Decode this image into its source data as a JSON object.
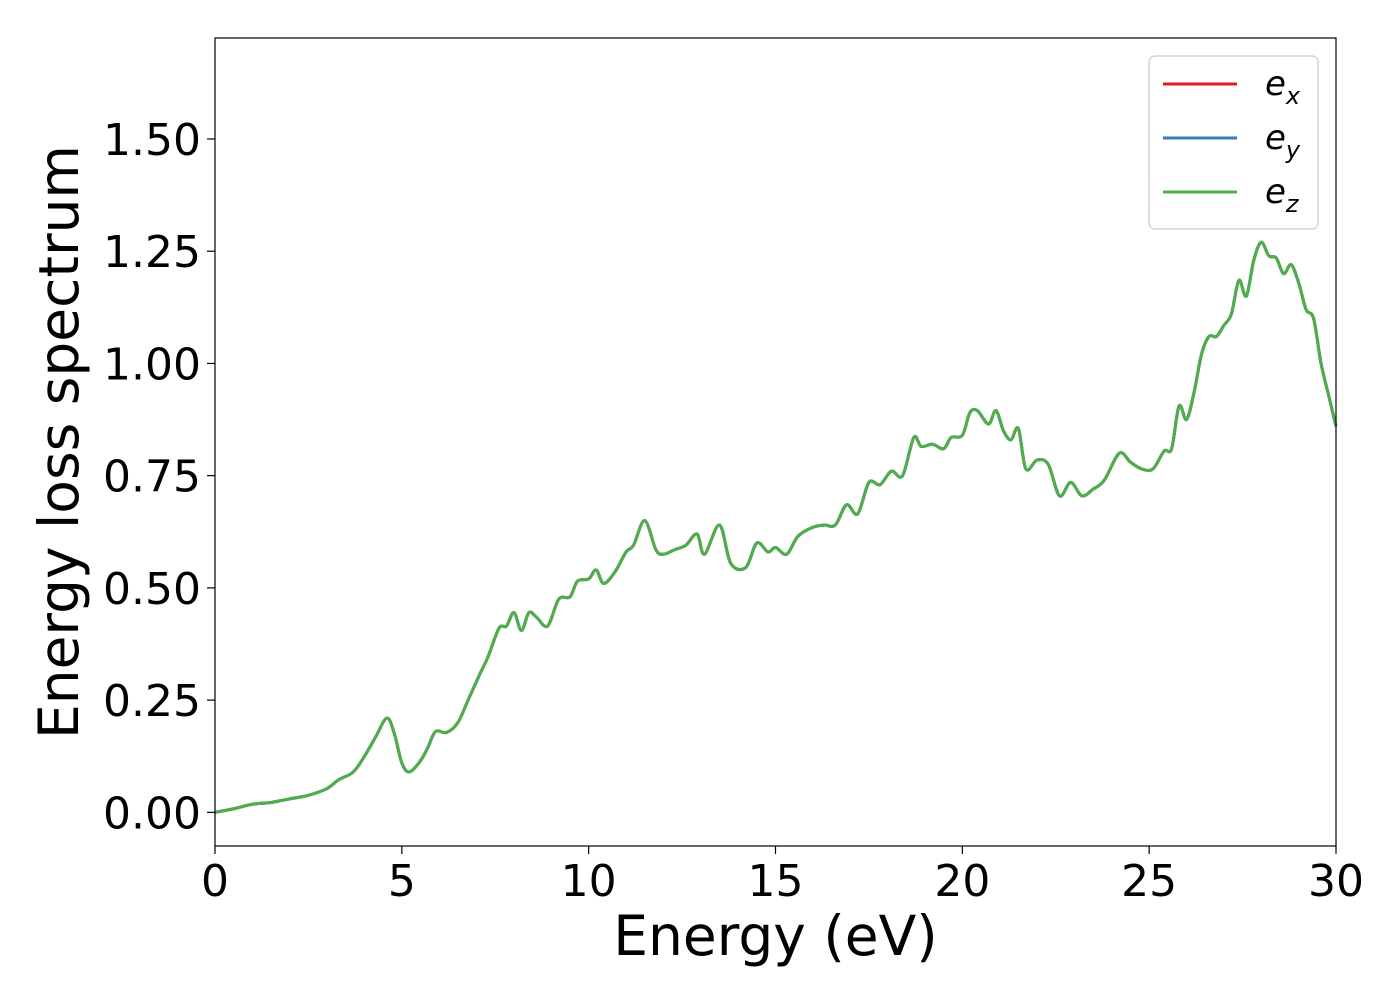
{
  "chart_data": {
    "type": "line",
    "title": "",
    "xlabel": "Energy (eV)",
    "ylabel": "Energy loss spectrum",
    "xlim": [
      0,
      30
    ],
    "ylim": [
      -0.075,
      1.725
    ],
    "xticks": [
      0,
      5,
      10,
      15,
      20,
      25,
      30
    ],
    "yticks": [
      0.0,
      0.25,
      0.5,
      0.75,
      1.0,
      1.25,
      1.5
    ],
    "xtick_labels": [
      "0",
      "5",
      "10",
      "15",
      "20",
      "25",
      "30"
    ],
    "ytick_labels": [
      "0.00",
      "0.25",
      "0.50",
      "0.75",
      "1.00",
      "1.25",
      "1.50"
    ],
    "grid": false,
    "legend_position": "top-right",
    "x": [
      0,
      0.5,
      1.0,
      1.5,
      2.0,
      2.5,
      3.0,
      3.3,
      3.7,
      4.0,
      4.3,
      4.6,
      4.8,
      5.0,
      5.2,
      5.5,
      5.7,
      5.9,
      6.2,
      6.5,
      6.8,
      7.1,
      7.3,
      7.6,
      7.8,
      8.0,
      8.2,
      8.4,
      8.6,
      8.9,
      9.2,
      9.5,
      9.7,
      10.0,
      10.2,
      10.4,
      10.7,
      11.0,
      11.2,
      11.5,
      11.8,
      12.0,
      12.3,
      12.6,
      12.9,
      13.1,
      13.5,
      13.8,
      14.2,
      14.5,
      14.8,
      15.0,
      15.3,
      15.6,
      16.0,
      16.3,
      16.6,
      16.9,
      17.2,
      17.5,
      17.8,
      18.1,
      18.4,
      18.7,
      18.9,
      19.2,
      19.5,
      19.7,
      20.0,
      20.2,
      20.4,
      20.7,
      20.9,
      21.1,
      21.3,
      21.5,
      21.7,
      22.0,
      22.3,
      22.6,
      22.9,
      23.2,
      23.5,
      23.8,
      24.2,
      24.5,
      24.8,
      25.1,
      25.4,
      25.6,
      25.8,
      26.0,
      26.2,
      26.4,
      26.6,
      26.8,
      27.0,
      27.2,
      27.4,
      27.6,
      27.8,
      28.0,
      28.2,
      28.4,
      28.6,
      28.8,
      29.0,
      29.2,
      29.4,
      29.6,
      29.8,
      30.0
    ],
    "series": [
      {
        "name": "e_x",
        "color": "#e41a1c",
        "values": [
          0,
          0.008,
          0.018,
          0.022,
          0.03,
          0.038,
          0.053,
          0.072,
          0.09,
          0.125,
          0.168,
          0.21,
          0.175,
          0.11,
          0.09,
          0.115,
          0.145,
          0.18,
          0.178,
          0.2,
          0.255,
          0.31,
          0.345,
          0.41,
          0.415,
          0.445,
          0.405,
          0.445,
          0.435,
          0.415,
          0.475,
          0.48,
          0.515,
          0.52,
          0.54,
          0.51,
          0.535,
          0.58,
          0.595,
          0.65,
          0.585,
          0.575,
          0.585,
          0.595,
          0.62,
          0.575,
          0.64,
          0.555,
          0.545,
          0.6,
          0.58,
          0.59,
          0.575,
          0.615,
          0.635,
          0.64,
          0.64,
          0.685,
          0.665,
          0.735,
          0.73,
          0.76,
          0.75,
          0.835,
          0.815,
          0.82,
          0.81,
          0.835,
          0.84,
          0.89,
          0.895,
          0.865,
          0.895,
          0.85,
          0.83,
          0.855,
          0.765,
          0.785,
          0.775,
          0.705,
          0.735,
          0.705,
          0.72,
          0.74,
          0.8,
          0.78,
          0.765,
          0.765,
          0.805,
          0.81,
          0.905,
          0.875,
          0.935,
          1.02,
          1.06,
          1.06,
          1.085,
          1.11,
          1.185,
          1.15,
          1.23,
          1.27,
          1.24,
          1.235,
          1.2,
          1.22,
          1.18,
          1.12,
          1.1,
          1.0,
          0.93,
          0.86
        ]
      },
      {
        "name": "e_y",
        "color": "#377eb8",
        "values": [
          0,
          0.008,
          0.018,
          0.022,
          0.03,
          0.038,
          0.053,
          0.072,
          0.09,
          0.125,
          0.168,
          0.21,
          0.175,
          0.11,
          0.09,
          0.115,
          0.145,
          0.18,
          0.178,
          0.2,
          0.255,
          0.31,
          0.345,
          0.41,
          0.415,
          0.445,
          0.405,
          0.445,
          0.435,
          0.415,
          0.475,
          0.48,
          0.515,
          0.52,
          0.54,
          0.51,
          0.535,
          0.58,
          0.595,
          0.65,
          0.585,
          0.575,
          0.585,
          0.595,
          0.62,
          0.575,
          0.64,
          0.555,
          0.545,
          0.6,
          0.58,
          0.59,
          0.575,
          0.615,
          0.635,
          0.64,
          0.64,
          0.685,
          0.665,
          0.735,
          0.73,
          0.76,
          0.75,
          0.835,
          0.815,
          0.82,
          0.81,
          0.835,
          0.84,
          0.89,
          0.895,
          0.865,
          0.895,
          0.85,
          0.83,
          0.855,
          0.765,
          0.785,
          0.775,
          0.705,
          0.735,
          0.705,
          0.72,
          0.74,
          0.8,
          0.78,
          0.765,
          0.765,
          0.805,
          0.81,
          0.905,
          0.875,
          0.935,
          1.02,
          1.06,
          1.06,
          1.085,
          1.11,
          1.185,
          1.15,
          1.23,
          1.27,
          1.24,
          1.235,
          1.2,
          1.22,
          1.18,
          1.12,
          1.1,
          1.0,
          0.93,
          0.86
        ]
      },
      {
        "name": "e_z",
        "color": "#4daf4a",
        "values": [
          0,
          0.008,
          0.018,
          0.022,
          0.03,
          0.038,
          0.053,
          0.072,
          0.09,
          0.125,
          0.168,
          0.21,
          0.175,
          0.11,
          0.09,
          0.115,
          0.145,
          0.18,
          0.178,
          0.2,
          0.255,
          0.31,
          0.345,
          0.41,
          0.415,
          0.445,
          0.405,
          0.445,
          0.435,
          0.415,
          0.475,
          0.48,
          0.515,
          0.52,
          0.54,
          0.51,
          0.535,
          0.58,
          0.595,
          0.65,
          0.585,
          0.575,
          0.585,
          0.595,
          0.62,
          0.575,
          0.64,
          0.555,
          0.545,
          0.6,
          0.58,
          0.59,
          0.575,
          0.615,
          0.635,
          0.64,
          0.64,
          0.685,
          0.665,
          0.735,
          0.73,
          0.76,
          0.75,
          0.835,
          0.815,
          0.82,
          0.81,
          0.835,
          0.84,
          0.89,
          0.895,
          0.865,
          0.895,
          0.85,
          0.83,
          0.855,
          0.765,
          0.785,
          0.775,
          0.705,
          0.735,
          0.705,
          0.72,
          0.74,
          0.8,
          0.78,
          0.765,
          0.765,
          0.805,
          0.81,
          0.905,
          0.875,
          0.935,
          1.02,
          1.06,
          1.06,
          1.085,
          1.11,
          1.185,
          1.15,
          1.23,
          1.27,
          1.24,
          1.235,
          1.2,
          1.22,
          1.18,
          1.12,
          1.1,
          1.0,
          0.93,
          0.86
        ]
      }
    ],
    "legend": [
      {
        "base": "e",
        "sub": "x",
        "color": "#e41a1c"
      },
      {
        "base": "e",
        "sub": "y",
        "color": "#377eb8"
      },
      {
        "base": "e",
        "sub": "z",
        "color": "#4daf4a"
      }
    ]
  }
}
